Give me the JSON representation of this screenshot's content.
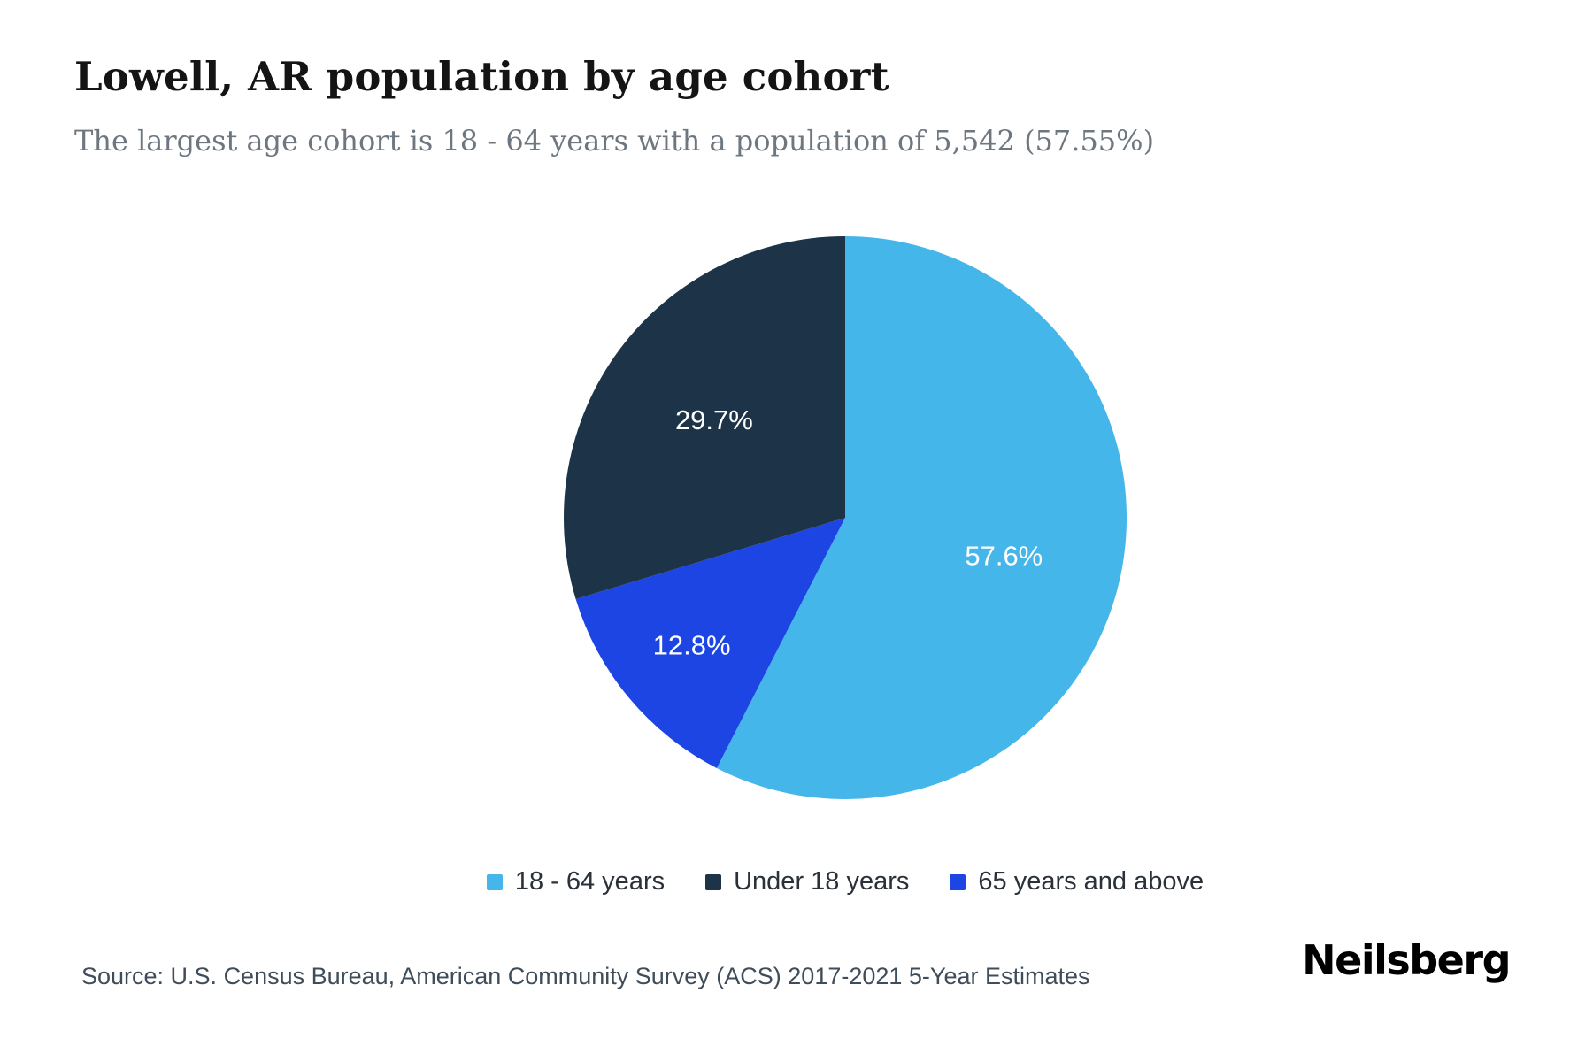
{
  "header": {
    "title": "Lowell, AR population by age cohort",
    "subtitle": "The largest age cohort is 18 - 64 years with a population of 5,542 (57.55%)"
  },
  "chart_data": {
    "type": "pie",
    "title": "Lowell, AR population by age cohort",
    "start_angle_deg": 0,
    "direction": "clockwise",
    "legend_position": "bottom",
    "slices": [
      {
        "label": "18 - 64 years",
        "value": 57.6,
        "display": "57.6%",
        "color": "#45b6ea"
      },
      {
        "label": "65 years and above",
        "value": 12.8,
        "display": "12.8%",
        "color": "#1c45e3"
      },
      {
        "label": "Under 18 years",
        "value": 29.7,
        "display": "29.7%",
        "color": "#1d3348"
      }
    ]
  },
  "footer": {
    "source": "Source: U.S. Census Bureau, American Community Survey (ACS) 2017-2021 5-Year Estimates",
    "brand": "Neilsberg"
  }
}
